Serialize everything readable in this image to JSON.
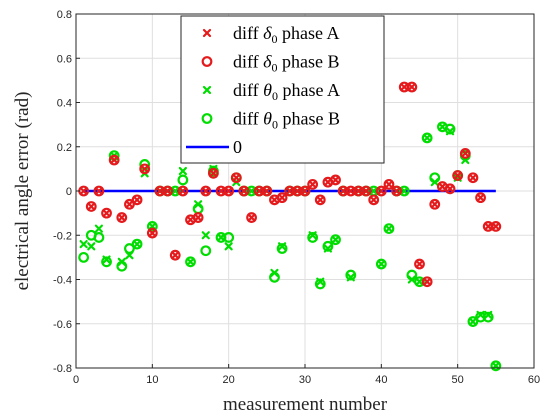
{
  "chart_data": {
    "type": "scatter",
    "xlabel": "measurement number",
    "ylabel": "electrical angle error (rad)",
    "xlim": [
      0,
      60
    ],
    "ylim": [
      -0.8,
      0.8
    ],
    "xticks": [
      "0",
      "10",
      "20",
      "30",
      "40",
      "50",
      "60"
    ],
    "yticks": [
      "-0.8",
      "-0.6",
      "-0.4",
      "-0.2",
      "0",
      "0.2",
      "0.4",
      "0.6",
      "0.8"
    ],
    "grid": true,
    "legend_position": "top-center",
    "series": [
      {
        "name": "diff δ0 phase A",
        "name_parts": [
          "diff ",
          "δ",
          "0",
          " phase A"
        ],
        "marker": "x",
        "color": "#e41a1c",
        "x": [
          1,
          2,
          3,
          4,
          5,
          6,
          7,
          8,
          9,
          10,
          11,
          12,
          13,
          14,
          15,
          16,
          17,
          18,
          19,
          20,
          21,
          22,
          23,
          24,
          25,
          26,
          27,
          28,
          29,
          30,
          31,
          32,
          33,
          34,
          35,
          36,
          37,
          38,
          39,
          40,
          41,
          42,
          43,
          44,
          45,
          46,
          47,
          48,
          49,
          50,
          51,
          52,
          53,
          54,
          55
        ],
        "y": [
          0,
          -0.07,
          0,
          -0.1,
          0.14,
          -0.12,
          -0.06,
          -0.04,
          0.1,
          -0.19,
          0,
          0,
          -0.29,
          0,
          -0.13,
          -0.12,
          0,
          0.08,
          0,
          0,
          0.06,
          0,
          -0.12,
          0,
          0,
          -0.04,
          -0.03,
          0,
          0,
          0,
          0.03,
          -0.04,
          0.04,
          0.05,
          0,
          0,
          0,
          0,
          -0.04,
          0,
          0.03,
          0,
          0.47,
          0.47,
          -0.33,
          -0.41,
          -0.06,
          0.02,
          0.01,
          0.07,
          0.17,
          0.06,
          -0.03,
          -0.16,
          -0.16
        ]
      },
      {
        "name": "diff δ0 phase B",
        "name_parts": [
          "diff ",
          "δ",
          "0",
          " phase B"
        ],
        "marker": "o",
        "color": "#e41a1c",
        "x": [
          1,
          2,
          3,
          4,
          5,
          6,
          7,
          8,
          9,
          10,
          11,
          12,
          13,
          14,
          15,
          16,
          17,
          18,
          19,
          20,
          21,
          22,
          23,
          24,
          25,
          26,
          27,
          28,
          29,
          30,
          31,
          32,
          33,
          34,
          35,
          36,
          37,
          38,
          39,
          40,
          41,
          42,
          43,
          44,
          45,
          46,
          47,
          48,
          49,
          50,
          51,
          52,
          53,
          54,
          55
        ],
        "y": [
          0,
          -0.07,
          0,
          -0.1,
          0.14,
          -0.12,
          -0.06,
          -0.04,
          0.1,
          -0.19,
          0,
          0,
          -0.29,
          0,
          -0.13,
          -0.12,
          0,
          0.08,
          0,
          0,
          0.06,
          0,
          -0.12,
          0,
          0,
          -0.04,
          -0.03,
          0,
          0,
          0,
          0.03,
          -0.04,
          0.04,
          0.05,
          0,
          0,
          0,
          0,
          -0.04,
          0,
          0.03,
          0,
          0.47,
          0.47,
          -0.33,
          -0.41,
          -0.06,
          0.02,
          0.01,
          0.07,
          0.17,
          0.06,
          -0.03,
          -0.16,
          -0.16
        ]
      },
      {
        "name": "diff θ0 phase A",
        "name_parts": [
          "diff ",
          "θ",
          "0",
          " phase A"
        ],
        "marker": "x",
        "color": "#00dd00",
        "x": [
          1,
          2,
          3,
          4,
          5,
          6,
          7,
          8,
          9,
          10,
          11,
          12,
          13,
          14,
          15,
          16,
          17,
          18,
          19,
          20,
          21,
          22,
          23,
          24,
          25,
          26,
          27,
          28,
          29,
          30,
          31,
          32,
          33,
          34,
          35,
          36,
          37,
          38,
          39,
          40,
          41,
          42,
          43,
          44,
          45,
          46,
          47,
          48,
          49,
          50,
          51,
          52,
          53,
          54,
          55
        ],
        "y": [
          -0.24,
          -0.25,
          -0.17,
          -0.31,
          0.16,
          -0.32,
          -0.29,
          -0.24,
          0.08,
          -0.16,
          0,
          0,
          0,
          0.09,
          -0.32,
          -0.06,
          -0.2,
          0.1,
          -0.21,
          -0.25,
          0.04,
          0,
          0,
          0,
          0,
          -0.37,
          -0.25,
          0,
          0,
          0,
          -0.2,
          -0.41,
          -0.26,
          -0.22,
          0,
          -0.39,
          0,
          0,
          0,
          -0.33,
          -0.17,
          0,
          0,
          -0.4,
          -0.41,
          0.24,
          0.04,
          0.29,
          0.27,
          0.06,
          0.14,
          -0.59,
          -0.56,
          -0.56,
          -0.79
        ]
      },
      {
        "name": "diff θ0 phase B",
        "name_parts": [
          "diff ",
          "θ",
          "0",
          " phase B"
        ],
        "marker": "o",
        "color": "#00dd00",
        "x": [
          1,
          2,
          3,
          4,
          5,
          6,
          7,
          8,
          9,
          10,
          11,
          12,
          13,
          14,
          15,
          16,
          17,
          18,
          19,
          20,
          21,
          22,
          23,
          24,
          25,
          26,
          27,
          28,
          29,
          30,
          31,
          32,
          33,
          34,
          35,
          36,
          37,
          38,
          39,
          40,
          41,
          42,
          43,
          44,
          45,
          46,
          47,
          48,
          49,
          50,
          51,
          52,
          53,
          54,
          55
        ],
        "y": [
          -0.3,
          -0.2,
          -0.21,
          -0.32,
          0.16,
          -0.34,
          -0.26,
          -0.24,
          0.12,
          -0.16,
          0,
          0,
          0,
          0.05,
          -0.32,
          -0.08,
          -0.27,
          0.09,
          -0.21,
          -0.21,
          0.06,
          0,
          0,
          0,
          0,
          -0.39,
          -0.26,
          0,
          0,
          0,
          -0.21,
          -0.42,
          -0.25,
          -0.22,
          0,
          -0.38,
          0,
          0,
          0,
          -0.33,
          -0.17,
          0,
          0,
          -0.38,
          -0.41,
          0.24,
          0.06,
          0.29,
          0.28,
          0.07,
          0.16,
          -0.59,
          -0.57,
          -0.57,
          -0.79
        ]
      },
      {
        "name": "0",
        "name_parts": [
          "0",
          "",
          "",
          ""
        ],
        "marker": "line",
        "color": "#0000ff",
        "x": [
          1,
          55
        ],
        "y": [
          0,
          0
        ]
      }
    ]
  }
}
